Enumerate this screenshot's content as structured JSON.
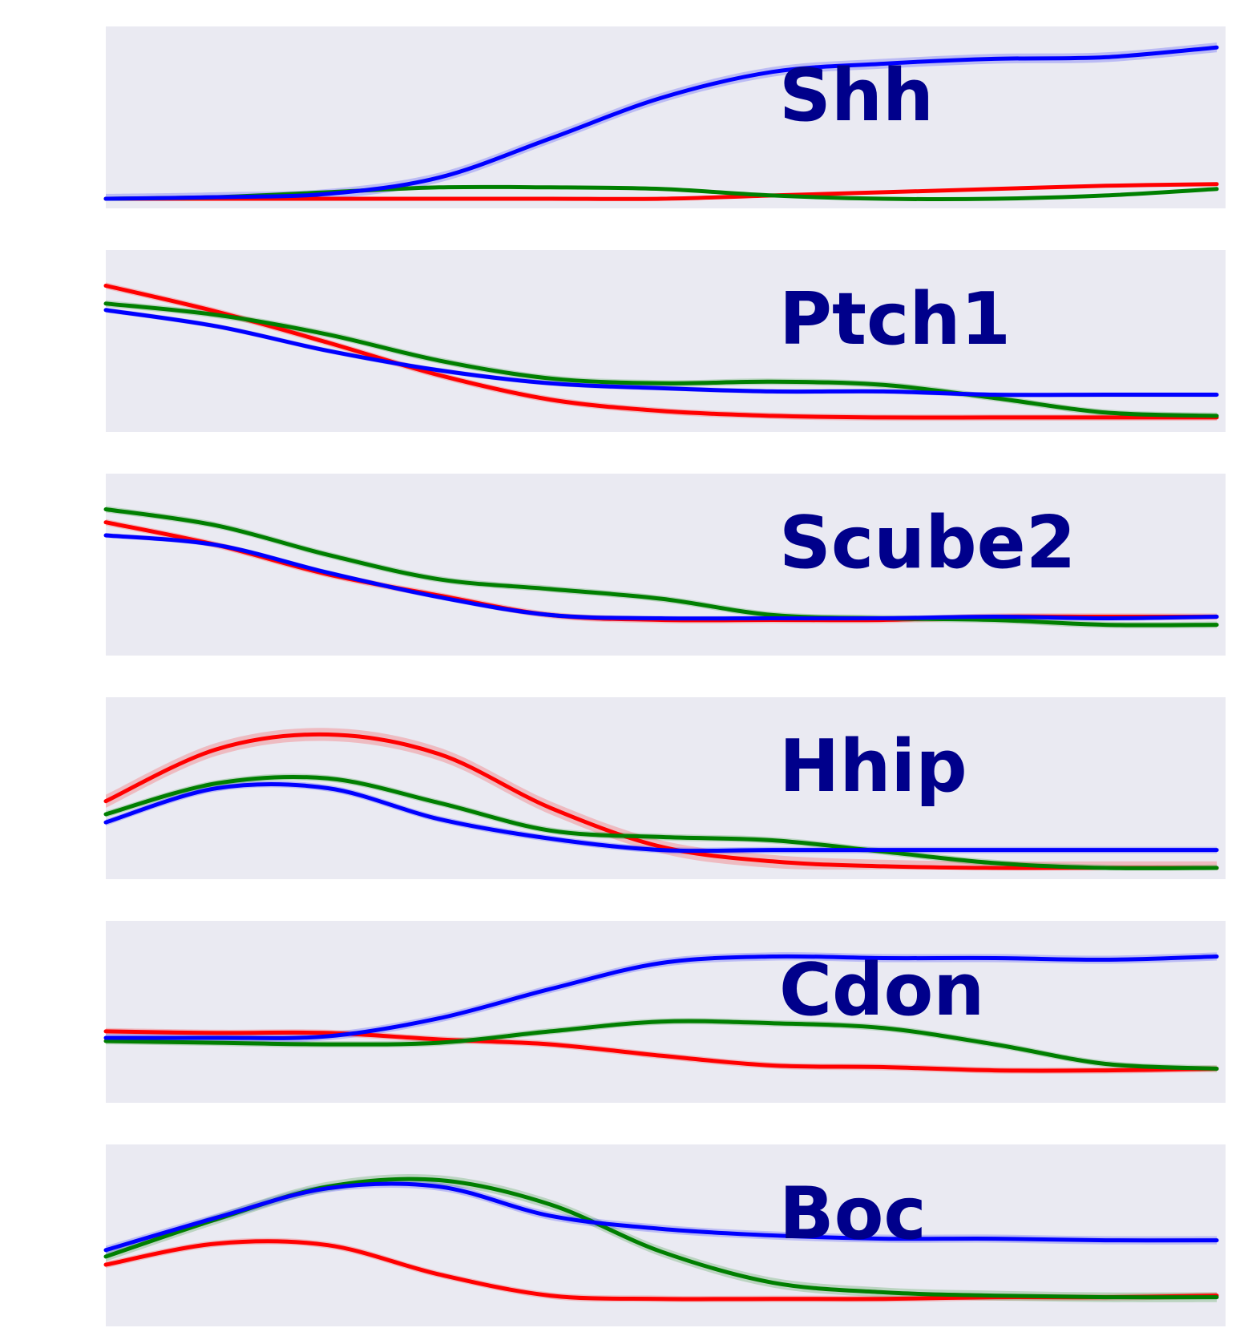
{
  "colors": {
    "background": "#ffffff",
    "panel_bg": "#eaeaf2",
    "label": "#00008b",
    "red": "#ff0000",
    "green": "#007f00",
    "blue": "#0000ff"
  },
  "chart_data": [
    {
      "type": "line",
      "title": "Shh",
      "x": [
        0,
        0.1,
        0.2,
        0.3,
        0.4,
        0.5,
        0.6,
        0.7,
        0.8,
        0.9,
        1.0
      ],
      "ylim": [
        0,
        1
      ],
      "grid": false,
      "series": [
        {
          "color": "red",
          "values": [
            0.0,
            0.0,
            0.0,
            0.0,
            0.0,
            0.0,
            0.02,
            0.04,
            0.06,
            0.08,
            0.09
          ],
          "band": 0.005
        },
        {
          "color": "green",
          "values": [
            0.0,
            0.01,
            0.04,
            0.07,
            0.07,
            0.06,
            0.02,
            0.0,
            0.0,
            0.02,
            0.06
          ],
          "band": 0.005
        },
        {
          "color": "blue",
          "values": [
            0.0,
            0.01,
            0.03,
            0.13,
            0.37,
            0.62,
            0.78,
            0.83,
            0.86,
            0.87,
            0.93
          ],
          "band": 0.03
        }
      ]
    },
    {
      "type": "line",
      "title": "Ptch1",
      "x": [
        0,
        0.1,
        0.2,
        0.3,
        0.4,
        0.5,
        0.6,
        0.7,
        0.8,
        0.9,
        1.0
      ],
      "ylim": [
        0,
        1
      ],
      "grid": false,
      "series": [
        {
          "color": "red",
          "values": [
            0.84,
            0.68,
            0.49,
            0.29,
            0.14,
            0.07,
            0.04,
            0.03,
            0.03,
            0.03,
            0.03
          ],
          "band": 0.02
        },
        {
          "color": "green",
          "values": [
            0.73,
            0.66,
            0.54,
            0.38,
            0.27,
            0.24,
            0.25,
            0.23,
            0.15,
            0.06,
            0.04
          ],
          "band": 0.02
        },
        {
          "color": "blue",
          "values": [
            0.69,
            0.59,
            0.44,
            0.32,
            0.24,
            0.21,
            0.19,
            0.19,
            0.17,
            0.17,
            0.17
          ],
          "band": 0.015
        }
      ]
    },
    {
      "type": "line",
      "title": "Scube2",
      "x": [
        0,
        0.1,
        0.2,
        0.3,
        0.4,
        0.5,
        0.6,
        0.7,
        0.8,
        0.9,
        1.0
      ],
      "ylim": [
        0,
        1
      ],
      "grid": false,
      "series": [
        {
          "color": "red",
          "values": [
            0.76,
            0.62,
            0.44,
            0.31,
            0.19,
            0.16,
            0.16,
            0.16,
            0.18,
            0.18,
            0.18
          ],
          "band": 0.02
        },
        {
          "color": "green",
          "values": [
            0.84,
            0.74,
            0.56,
            0.41,
            0.35,
            0.29,
            0.19,
            0.17,
            0.16,
            0.13,
            0.13
          ],
          "band": 0.02
        },
        {
          "color": "blue",
          "values": [
            0.68,
            0.62,
            0.45,
            0.3,
            0.19,
            0.17,
            0.17,
            0.17,
            0.18,
            0.17,
            0.18
          ],
          "band": 0.015
        }
      ]
    },
    {
      "type": "line",
      "title": "Hhip",
      "x": [
        0,
        0.1,
        0.2,
        0.3,
        0.4,
        0.5,
        0.6,
        0.7,
        0.8,
        0.9,
        1.0
      ],
      "ylim": [
        0,
        1
      ],
      "grid": false,
      "series": [
        {
          "color": "red",
          "values": [
            0.42,
            0.74,
            0.83,
            0.71,
            0.38,
            0.14,
            0.05,
            0.02,
            0.01,
            0.01,
            0.01
          ],
          "band": 0.04
        },
        {
          "color": "green",
          "values": [
            0.34,
            0.53,
            0.56,
            0.41,
            0.24,
            0.2,
            0.18,
            0.11,
            0.04,
            0.01,
            0.01
          ],
          "band": 0.02
        },
        {
          "color": "blue",
          "values": [
            0.29,
            0.5,
            0.5,
            0.31,
            0.19,
            0.12,
            0.12,
            0.12,
            0.12,
            0.12,
            0.12
          ],
          "band": 0.02
        }
      ]
    },
    {
      "type": "line",
      "title": "Cdon",
      "x": [
        0,
        0.1,
        0.2,
        0.3,
        0.4,
        0.5,
        0.6,
        0.7,
        0.8,
        0.9,
        1.0
      ],
      "ylim": [
        0,
        1
      ],
      "grid": false,
      "series": [
        {
          "color": "red",
          "values": [
            0.38,
            0.37,
            0.37,
            0.33,
            0.3,
            0.23,
            0.17,
            0.16,
            0.14,
            0.14,
            0.15
          ],
          "band": 0.02
        },
        {
          "color": "green",
          "values": [
            0.32,
            0.31,
            0.3,
            0.31,
            0.38,
            0.44,
            0.43,
            0.4,
            0.3,
            0.18,
            0.15
          ],
          "band": 0.02
        },
        {
          "color": "blue",
          "values": [
            0.34,
            0.34,
            0.35,
            0.46,
            0.64,
            0.8,
            0.84,
            0.83,
            0.83,
            0.82,
            0.84
          ],
          "band": 0.025
        }
      ]
    },
    {
      "type": "line",
      "title": "Boc",
      "x": [
        0,
        0.1,
        0.2,
        0.3,
        0.4,
        0.5,
        0.6,
        0.7,
        0.8,
        0.9,
        1.0
      ],
      "ylim": [
        0,
        1
      ],
      "grid": false,
      "series": [
        {
          "color": "red",
          "values": [
            0.32,
            0.45,
            0.44,
            0.26,
            0.13,
            0.11,
            0.11,
            0.11,
            0.12,
            0.12,
            0.13
          ],
          "band": 0.02
        },
        {
          "color": "green",
          "values": [
            0.37,
            0.6,
            0.8,
            0.84,
            0.69,
            0.4,
            0.21,
            0.15,
            0.13,
            0.12,
            0.12
          ],
          "band": 0.03
        },
        {
          "color": "blue",
          "values": [
            0.41,
            0.61,
            0.79,
            0.8,
            0.62,
            0.54,
            0.5,
            0.48,
            0.48,
            0.47,
            0.47
          ],
          "band": 0.025
        }
      ]
    }
  ]
}
